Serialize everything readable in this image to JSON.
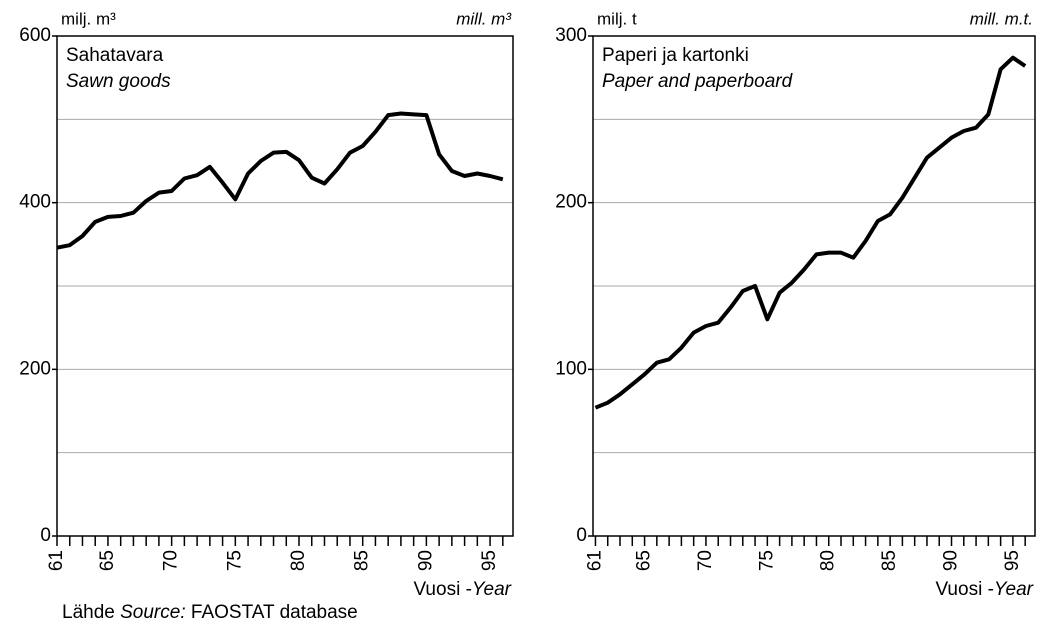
{
  "chart_data": [
    {
      "type": "line",
      "title": "Sahatavara",
      "subtitle": "Sawn goods",
      "unit_fi": "milj. m³",
      "unit_en": "mill. m³",
      "xlabel": "Vuosi -",
      "xlabel_en": "Year",
      "color": "#000000",
      "x": [
        61,
        62,
        63,
        64,
        65,
        66,
        67,
        68,
        69,
        70,
        71,
        72,
        73,
        74,
        75,
        76,
        77,
        78,
        79,
        80,
        81,
        82,
        83,
        84,
        85,
        86,
        87,
        88,
        89,
        90,
        91,
        92,
        93,
        94,
        95,
        96
      ],
      "values": [
        346,
        349,
        360,
        377,
        383,
        384,
        388,
        402,
        412,
        414,
        429,
        433,
        443,
        424,
        404,
        435,
        450,
        460,
        461,
        451,
        430,
        423,
        440,
        460,
        468,
        485,
        505,
        507,
        506,
        505,
        458,
        438,
        432,
        435,
        432,
        428
      ],
      "xlim": [
        61,
        96.8
      ],
      "xticks": [
        61,
        65,
        70,
        75,
        80,
        85,
        90,
        95
      ],
      "minor_xticks": [
        61,
        62,
        63,
        64,
        65,
        66,
        67,
        68,
        69,
        70,
        71,
        72,
        73,
        74,
        75,
        76,
        77,
        78,
        79,
        80,
        81,
        82,
        83,
        84,
        85,
        86,
        87,
        88,
        89,
        90,
        91,
        92,
        93,
        94,
        95,
        96
      ],
      "ylim": [
        0,
        600
      ],
      "yticks": [
        0,
        200,
        400,
        600
      ],
      "minor_yticks": [
        100,
        300,
        500
      ],
      "grid": true
    },
    {
      "type": "line",
      "title": "Paperi ja kartonki",
      "subtitle": "Paper and paperboard",
      "unit_fi": "milj. t",
      "unit_en": "mill. m.t.",
      "xlabel": "Vuosi -",
      "xlabel_en": "Year",
      "color": "#000000",
      "x": [
        61,
        62,
        63,
        64,
        65,
        66,
        67,
        68,
        69,
        70,
        71,
        72,
        73,
        74,
        75,
        76,
        77,
        78,
        79,
        80,
        81,
        82,
        83,
        84,
        85,
        86,
        87,
        88,
        89,
        90,
        91,
        92,
        93,
        94,
        95,
        96
      ],
      "values": [
        77,
        80,
        85,
        91,
        97,
        104,
        106,
        113,
        122,
        126,
        128,
        137,
        147,
        150,
        130,
        146,
        152,
        160,
        169,
        170,
        170,
        167,
        177,
        189,
        193,
        203,
        215,
        227,
        233,
        239,
        243,
        245,
        253,
        280,
        287,
        282
      ],
      "xlim": [
        60.8,
        96.8
      ],
      "xticks": [
        61,
        65,
        70,
        75,
        80,
        85,
        90,
        95
      ],
      "minor_xticks": [
        61,
        62,
        63,
        64,
        65,
        66,
        67,
        68,
        69,
        70,
        71,
        72,
        73,
        74,
        75,
        76,
        77,
        78,
        79,
        80,
        81,
        82,
        83,
        84,
        85,
        86,
        87,
        88,
        89,
        90,
        91,
        92,
        93,
        94,
        95,
        96
      ],
      "ylim": [
        0,
        300
      ],
      "yticks": [
        0,
        100,
        200,
        300
      ],
      "minor_yticks": [
        50,
        150,
        250
      ],
      "grid": true
    }
  ],
  "source": {
    "label": "Lähde",
    "label_en": "Source:",
    "text": "FAOSTAT database"
  }
}
